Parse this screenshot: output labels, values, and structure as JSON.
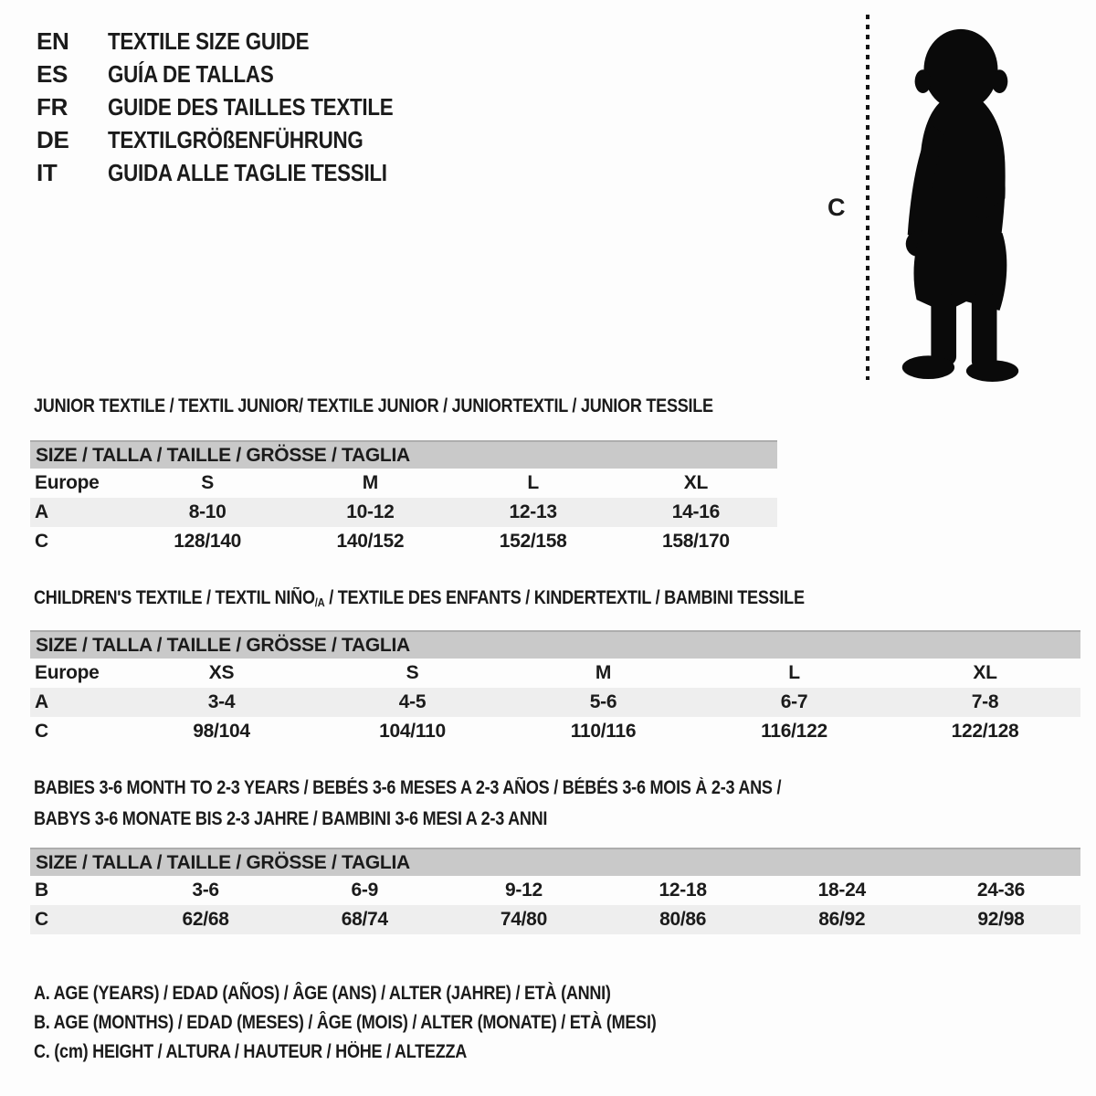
{
  "header": {
    "languages": [
      {
        "code": "EN",
        "title": "TEXTILE SIZE GUIDE"
      },
      {
        "code": "ES",
        "title": "GUÍA DE TALLAS"
      },
      {
        "code": "FR",
        "title": "GUIDE DES TAILLES TEXTILE"
      },
      {
        "code": "DE",
        "title": "TEXTILGRÖßENFÜHRUNG"
      },
      {
        "code": "IT",
        "title": "GUIDA ALLE TAGLIE TESSILI"
      }
    ]
  },
  "figure": {
    "measure_label": "C",
    "image": "toddler-silhouette"
  },
  "sections": {
    "junior": {
      "heading": "JUNIOR TEXTILE / TEXTIL JUNIOR/ TEXTILE JUNIOR / JUNIORTEXTIL / JUNIOR TESSILE",
      "size_header": "SIZE / TALLA / TAILLE / GRÖSSE / TAGLIA",
      "table": {
        "label_column": [
          "Europe",
          "A",
          "C"
        ],
        "rows": [
          [
            "S",
            "M",
            "L",
            "XL"
          ],
          [
            "8-10",
            "10-12",
            "12-13",
            "14-16"
          ],
          [
            "128/140",
            "140/152",
            "152/158",
            "158/170"
          ]
        ]
      }
    },
    "children": {
      "heading_pre": "CHILDREN'S TEXTILE / TEXTIL NIÑO",
      "heading_sub": "/A",
      "heading_post": " / TEXTILE DES ENFANTS / KINDERTEXTIL / BAMBINI TESSILE",
      "size_header": "SIZE / TALLA / TAILLE / GRÖSSE / TAGLIA",
      "table": {
        "label_column": [
          "Europe",
          "A",
          "C"
        ],
        "rows": [
          [
            "XS",
            "S",
            "M",
            "L",
            "XL"
          ],
          [
            "3-4",
            "4-5",
            "5-6",
            "6-7",
            "7-8"
          ],
          [
            "98/104",
            "104/110",
            "110/116",
            "116/122",
            "122/128"
          ]
        ]
      }
    },
    "babies": {
      "heading_line1": "BABIES 3-6 MONTH TO 2-3 YEARS / BEBÉS 3-6 MESES A 2-3 AÑOS / BÉBÉS 3-6 MOIS À 2-3 ANS /",
      "heading_line2": "BABYS 3-6 MONATE BIS 2-3 JAHRE / BAMBINI 3-6 MESI A 2-3 ANNI",
      "size_header": "SIZE / TALLA / TAILLE / GRÖSSE / TAGLIA",
      "table": {
        "label_column": [
          "B",
          "C"
        ],
        "rows": [
          [
            "3-6",
            "6-9",
            "9-12",
            "12-18",
            "18-24",
            "24-36"
          ],
          [
            "62/68",
            "68/74",
            "74/80",
            "80/86",
            "86/92",
            "92/98"
          ]
        ]
      }
    }
  },
  "legend": {
    "line_a": "A. AGE (YEARS) / EDAD (AÑOS) / ÂGE (ANS) / ALTER (JAHRE) / ETÀ (ANNI)",
    "line_b": "B. AGE (MONTHS) / EDAD (MESES) / ÂGE (MOIS) / ALTER (MONATE) / ETÀ (MESI)",
    "line_c": "C. (cm) HEIGHT / ALTURA / HAUTEUR / HÖHE / ALTEZZA"
  },
  "colors": {
    "size_bar_bg": "#c9c9c9",
    "shaded_row_bg": "#eeeeee",
    "ink": "#1b1b1b",
    "background": "#fdfdfd",
    "silhouette_fill": "#0a0a0a"
  }
}
